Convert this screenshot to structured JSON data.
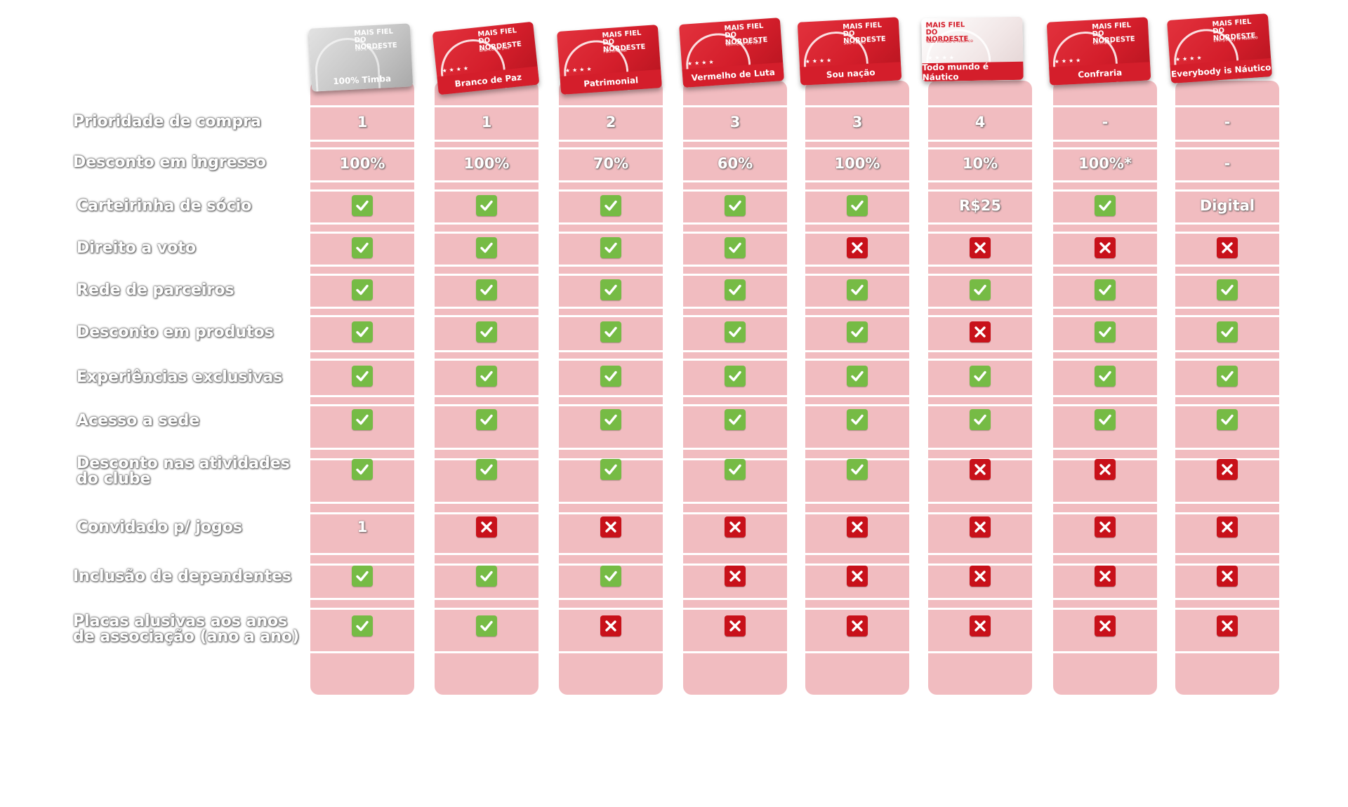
{
  "colors": {
    "column_bg": "#f1bcc0",
    "check_green": "#76bb45",
    "cross_red": "#c8111a",
    "card_red": "#d41e2b"
  },
  "plans": [
    {
      "name": "100% Timba",
      "brand": "MAIS FIEL DO NORDESTE",
      "sub": "100% Timba",
      "style": "gray"
    },
    {
      "name": "Branco de Paz",
      "brand": "MAIS FIEL DO NORDESTE",
      "sub": "Branco de paz",
      "style": "red"
    },
    {
      "name": "Patrimonial",
      "brand": "MAIS FIEL DO NORDESTE",
      "sub": "Patrimonial",
      "style": "red"
    },
    {
      "name": "Vermelho de Luta",
      "brand": "MAIS FIEL DO NORDESTE",
      "sub": "Vermelho de luta",
      "style": "red"
    },
    {
      "name": "Sou nação",
      "brand": "MAIS FIEL DO NORDESTE",
      "sub": "Sou nação",
      "style": "red"
    },
    {
      "name": "Todo mundo é Náutico",
      "brand": "MAIS FIEL DO NORDESTE",
      "sub": "Todo mundo é Náutico",
      "style": "light"
    },
    {
      "name": "Confraria",
      "brand": "MAIS FIEL DO NORDESTE",
      "sub": "Confraria",
      "style": "red"
    },
    {
      "name": "Everybody is Náutico",
      "brand": "MAIS FIEL DO NORDESTE",
      "sub": "Everybody is Náutico",
      "style": "red"
    }
  ],
  "rows": [
    {
      "label": "Prioridade de compra",
      "cells": [
        "1",
        "1",
        "2",
        "3",
        "3",
        "4",
        "-",
        "-"
      ]
    },
    {
      "label": "Desconto em ingresso",
      "cells": [
        "100%",
        "100%",
        "70%",
        "60%",
        "100%",
        "10%",
        "100%*",
        "-"
      ]
    },
    {
      "label": "Carteirinha de sócio",
      "cells": [
        "check",
        "check",
        "check",
        "check",
        "check",
        "R$25",
        "check",
        "Digital"
      ]
    },
    {
      "label": "Direito a voto",
      "cells": [
        "check",
        "check",
        "check",
        "check",
        "cross",
        "cross",
        "cross",
        "cross"
      ]
    },
    {
      "label": "Rede de parceiros",
      "cells": [
        "check",
        "check",
        "check",
        "check",
        "check",
        "check",
        "check",
        "check"
      ]
    },
    {
      "label": "Desconto em produtos",
      "cells": [
        "check",
        "check",
        "check",
        "check",
        "check",
        "cross",
        "check",
        "check"
      ]
    },
    {
      "label": "Experiências exclusivas",
      "cells": [
        "check",
        "check",
        "check",
        "check",
        "check",
        "check",
        "check",
        "check"
      ]
    },
    {
      "label": "Acesso a sede",
      "cells": [
        "check",
        "check",
        "check",
        "check",
        "check",
        "check",
        "check",
        "check"
      ]
    },
    {
      "label": "Desconto nas atividades\ndo clube",
      "cells": [
        "check",
        "check",
        "check",
        "check",
        "check",
        "cross",
        "cross",
        "cross"
      ]
    },
    {
      "label": "Convidado p/ jogos",
      "cells": [
        "1",
        "cross",
        "cross",
        "cross",
        "cross",
        "cross",
        "cross",
        "cross"
      ]
    },
    {
      "label": "Inclusão de dependentes",
      "cells": [
        "check",
        "check",
        "check",
        "cross",
        "cross",
        "cross",
        "cross",
        "cross"
      ]
    },
    {
      "label": "Placas alusivas aos anos\nde associação (ano a ano)",
      "cells": [
        "check",
        "check",
        "cross",
        "cross",
        "cross",
        "cross",
        "cross",
        "cross"
      ]
    }
  ]
}
